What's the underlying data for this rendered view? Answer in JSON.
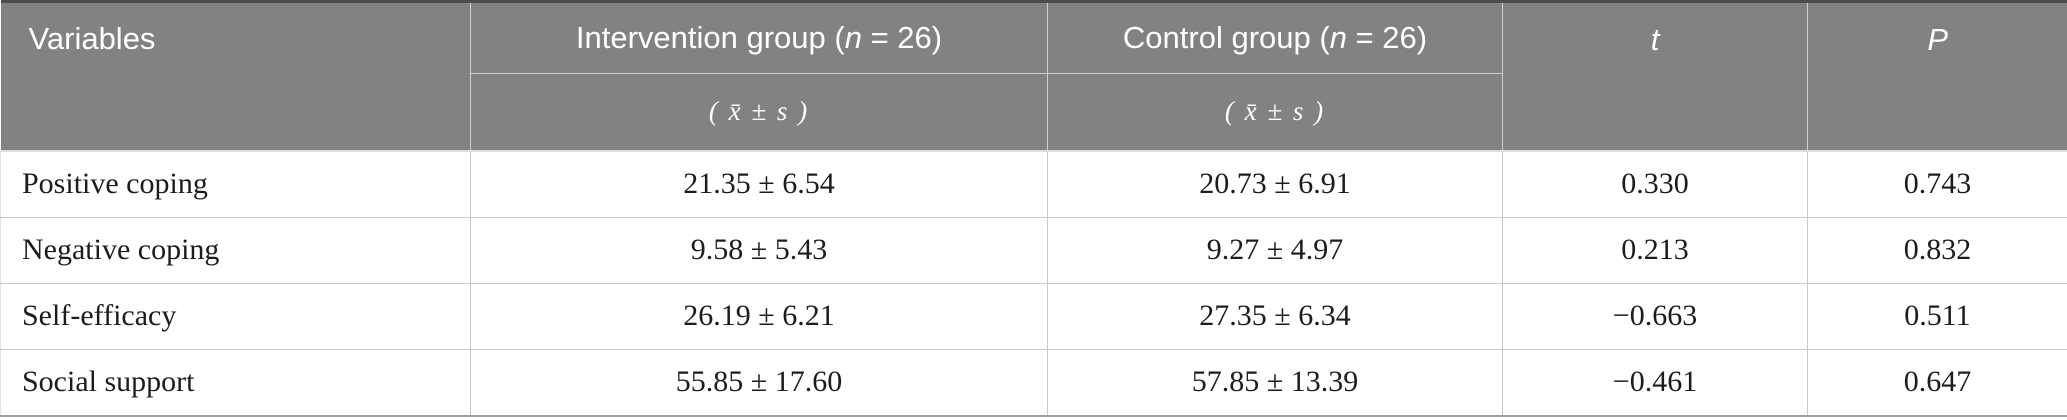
{
  "table": {
    "header": {
      "variables": "Variables",
      "intervention": {
        "prefix": "Intervention group (",
        "n": "n",
        "suffix": " = 26)",
        "stat": "( x̄ ± s )"
      },
      "control": {
        "prefix": "Control group (",
        "n": "n",
        "suffix": " = 26)",
        "stat": "( x̄ ± s )"
      },
      "t": "t",
      "p": "P"
    },
    "rows": [
      {
        "variable": "Positive coping",
        "intervention": "21.35 ± 6.54",
        "control": "20.73 ± 6.91",
        "t": "0.330",
        "p": "0.743"
      },
      {
        "variable": "Negative coping",
        "intervention": "9.58 ± 5.43",
        "control": "9.27 ± 4.97",
        "t": "0.213",
        "p": "0.832"
      },
      {
        "variable": "Self-efficacy",
        "intervention": "26.19 ± 6.21",
        "control": "27.35 ± 6.34",
        "t": "−0.663",
        "p": "0.511"
      },
      {
        "variable": "Social support",
        "intervention": "55.85 ± 17.60",
        "control": "57.85 ± 13.39",
        "t": "−0.461",
        "p": "0.647"
      }
    ],
    "colors": {
      "header_bg": "#828282",
      "header_text": "#ffffff",
      "body_text": "#1c1c1c",
      "top_border": "#4c4c4c",
      "grid_line": "#c9c9c9",
      "bottom_border": "#9e9e9e"
    }
  },
  "chart_data": {
    "type": "table",
    "columns": [
      "Variables",
      "Intervention group (n = 26) ( x̄ ± s )",
      "Control group (n = 26) ( x̄ ± s )",
      "t",
      "P"
    ],
    "rows": [
      [
        "Positive coping",
        "21.35 ± 6.54",
        "20.73 ± 6.91",
        "0.330",
        "0.743"
      ],
      [
        "Negative coping",
        "9.58 ± 5.43",
        "9.27 ± 4.97",
        "0.213",
        "0.832"
      ],
      [
        "Self-efficacy",
        "26.19 ± 6.21",
        "27.35 ± 6.34",
        "−0.663",
        "0.511"
      ],
      [
        "Social support",
        "55.85 ± 17.60",
        "57.85 ± 13.39",
        "−0.461",
        "0.647"
      ]
    ]
  }
}
